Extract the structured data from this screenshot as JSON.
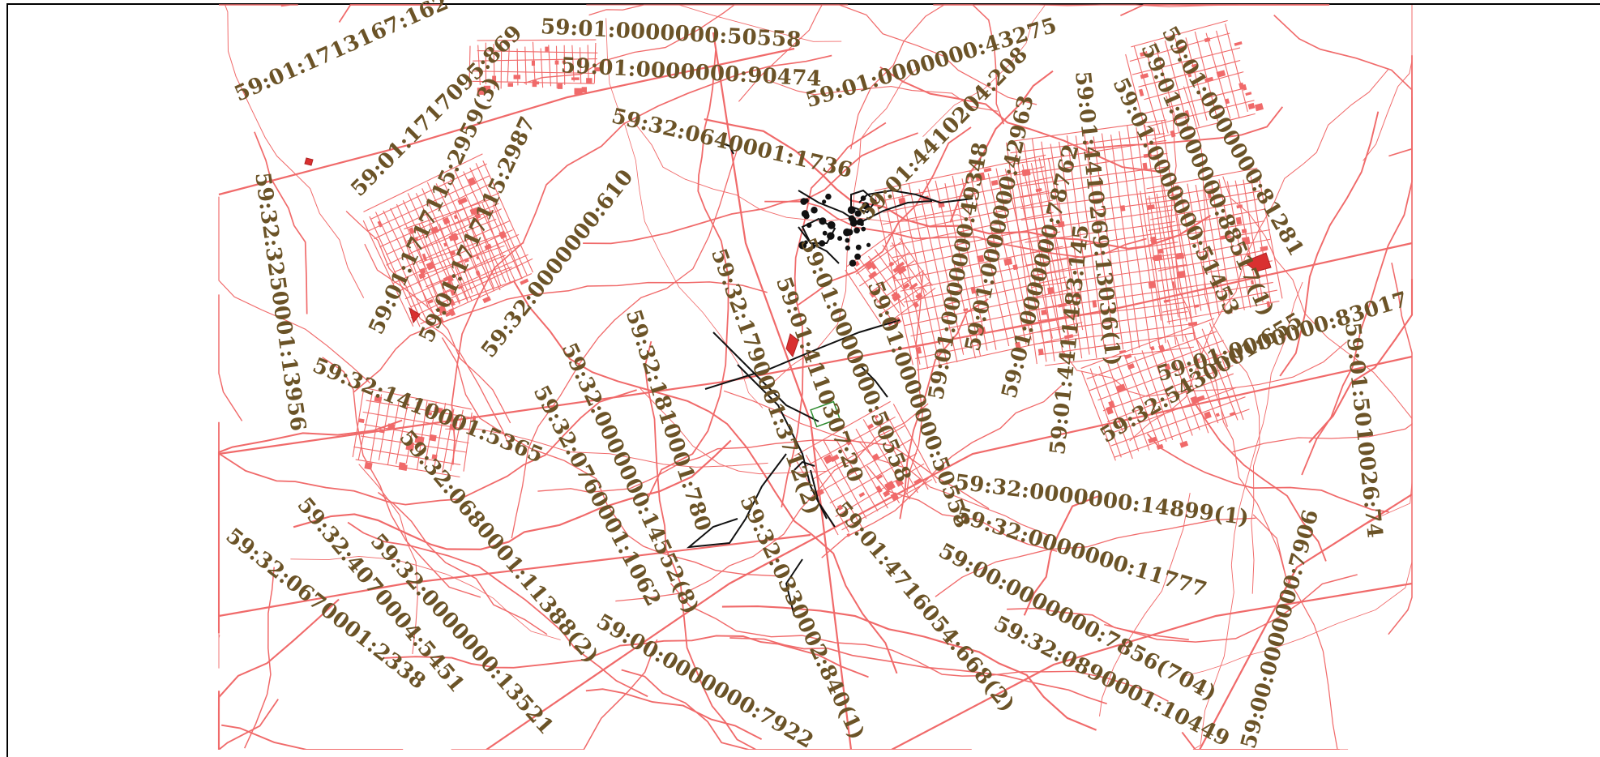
{
  "map": {
    "colors": {
      "roads": "#f06a6a",
      "network": "#111111",
      "label": "#6b5327",
      "green": "#2e8b2e",
      "frame": "#000000"
    }
  },
  "labels": [
    "59:01:1713167:162",
    "59:01:0000000:50558",
    "59:01:0000000:90474",
    "59:01:0000000:43275",
    "59:01:1717095:869",
    "59:01:1717115:2959(3)",
    "59:01:1717115:2987",
    "59:32:0640001:1736",
    "59:01:4410204:208",
    "59:01:0000000:49348",
    "59:01:0000000:42963",
    "59:01:0000000:78762",
    "59:01:4410269:13036(1)",
    "59:01:0000000:88517(1)",
    "59:01:0000000:51453",
    "59:01:0000000:81281",
    "59:01:0000000:83017",
    "59:32:3250001:13956",
    "59:32:0000000:610",
    "59:32:1410001:5365",
    "59:32:0680001:11388(2)",
    "59:32:0000000:13521",
    "59:32:4070004:5451",
    "59:32:0670001:2338",
    "59:32:0760001:1062",
    "59:32:0000000:14552(8)",
    "59:32:1810001:780",
    "59:32:1790001:3712(2)",
    "59:01:4110307:20",
    "59:01:0000000:50558",
    "59:01:0000000:50558",
    "59:32:0330002:840(1)",
    "59:00:0000000:7922",
    "59:01:4716054:668(2)",
    "59:01:4411483:145",
    "59:32:5430001:655",
    "59:32:0000000:14899(1)",
    "59:32:0000000:11777",
    "59:00:0000000:7856(704)",
    "59:32:0890001:10449",
    "59:00:0000000:7906",
    "59:01:5010026:74"
  ]
}
